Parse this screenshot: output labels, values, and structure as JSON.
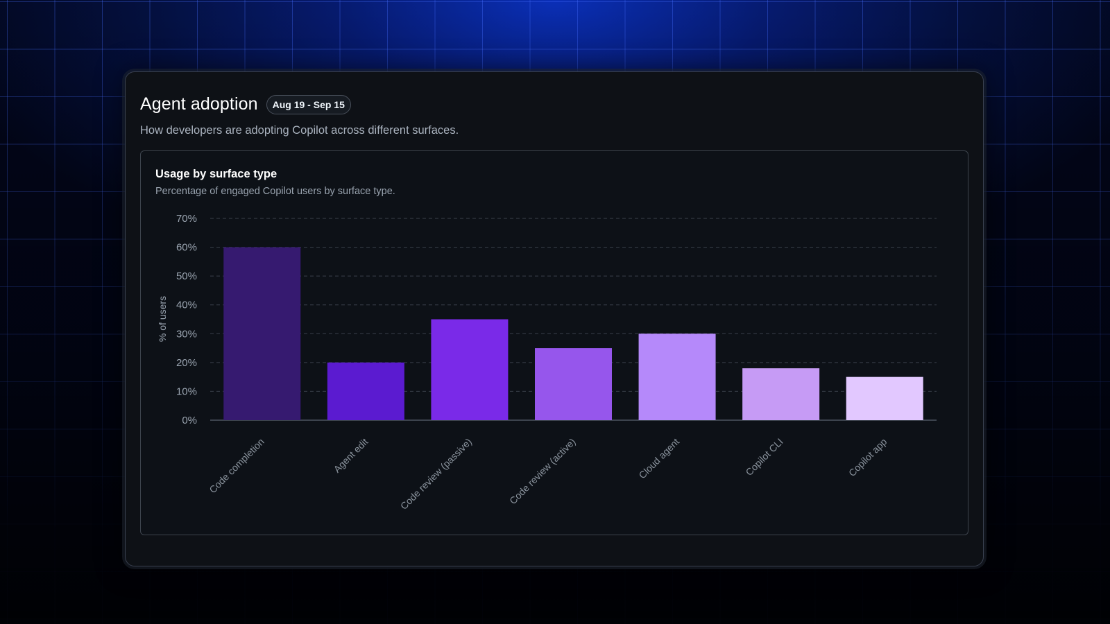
{
  "header": {
    "title": "Agent adoption",
    "date_range": "Aug 19 - Sep 15",
    "subtitle": "How developers are adopting Copilot across different surfaces."
  },
  "card": {
    "title": "Usage by surface type",
    "description": "Percentage of engaged Copilot users by surface type."
  },
  "colors": {
    "background": "#04103f",
    "grid_lines": "#2f54ff",
    "panel": "#0e1116",
    "bars": [
      "#361a70",
      "#5b1bd0",
      "#7a2ae8",
      "#9656ec",
      "#b589fa",
      "#c69bf5",
      "#e2c8ff"
    ]
  },
  "chart_data": {
    "type": "bar",
    "title": "Usage by surface type",
    "subtitle": "Percentage of engaged Copilot users by surface type.",
    "xlabel": "",
    "ylabel": "% of users",
    "categories": [
      "Code completion",
      "Agent edit",
      "Code review (passive)",
      "Code review (active)",
      "Cloud agent",
      "Copilot CLI",
      "Copilot app"
    ],
    "values": [
      60,
      20,
      35,
      25,
      30,
      18,
      15
    ],
    "ylim": [
      0,
      70
    ],
    "yticks": [
      0,
      10,
      20,
      30,
      40,
      50,
      60,
      70
    ],
    "ytick_labels": [
      "0%",
      "10%",
      "20%",
      "30%",
      "40%",
      "50%",
      "60%",
      "70%"
    ],
    "grid": true,
    "legend": "none"
  }
}
